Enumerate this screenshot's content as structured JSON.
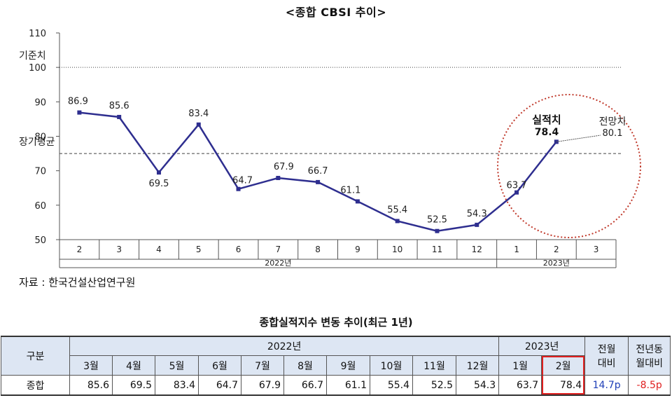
{
  "header": {
    "title": "<종합 CBSI 추이>"
  },
  "chart_data": {
    "type": "line",
    "y_ticks": [
      110,
      100,
      90,
      80,
      70,
      60,
      50
    ],
    "ylim": [
      50,
      110
    ],
    "x_months": [
      "2",
      "3",
      "4",
      "5",
      "6",
      "7",
      "8",
      "9",
      "10",
      "11",
      "12",
      "1",
      "2",
      "3"
    ],
    "year_labels": [
      "2022년",
      "2023년"
    ],
    "series": [
      {
        "values": [
          86.9,
          85.6,
          69.5,
          83.4,
          64.7,
          67.9,
          66.7,
          61.1,
          55.4,
          52.5,
          54.3,
          63.7,
          78.4
        ],
        "labels": [
          "86.9",
          "85.6",
          "69.5",
          "83.4",
          "64.7",
          "67.9",
          "66.7",
          "61.1",
          "55.4",
          "52.5",
          "54.3",
          "63.7",
          "78.4"
        ]
      }
    ],
    "reference_lines": [
      {
        "label": "기준치",
        "value": 100,
        "style": "dotted"
      },
      {
        "label": "장기평균",
        "value": 75,
        "style": "dashed"
      }
    ],
    "annotations": {
      "actual_label": "실적치",
      "forecast_label": "전망치",
      "forecast_value": "80.1"
    },
    "colors": {
      "line": "#2e2e8f",
      "highlight": "#c0392b",
      "axis": "#555555"
    }
  },
  "source": "자료 : 한국건설산업연구원",
  "table": {
    "title": "종합실적지수 변동 추이(최근 1년)",
    "corner": "구분",
    "year_2022": "2022년",
    "year_2023": "2023년",
    "mom_header": [
      "전월",
      "대비"
    ],
    "yoy_header": [
      "전년동",
      "월대비"
    ],
    "months": [
      "3월",
      "4월",
      "5월",
      "6월",
      "7월",
      "8월",
      "9월",
      "10월",
      "11월",
      "12월",
      "1월",
      "2월"
    ],
    "row_label": "종합",
    "values": [
      "85.6",
      "69.5",
      "83.4",
      "64.7",
      "67.9",
      "66.7",
      "61.1",
      "55.4",
      "52.5",
      "54.3",
      "63.7",
      "78.4"
    ],
    "mom": "14.7p",
    "yoy": "-8.5p",
    "colors": {
      "header_bg": "#dde6f3",
      "mom": "#1f3fb7",
      "yoy": "#e02020",
      "highlight_box": "#e02020"
    }
  }
}
